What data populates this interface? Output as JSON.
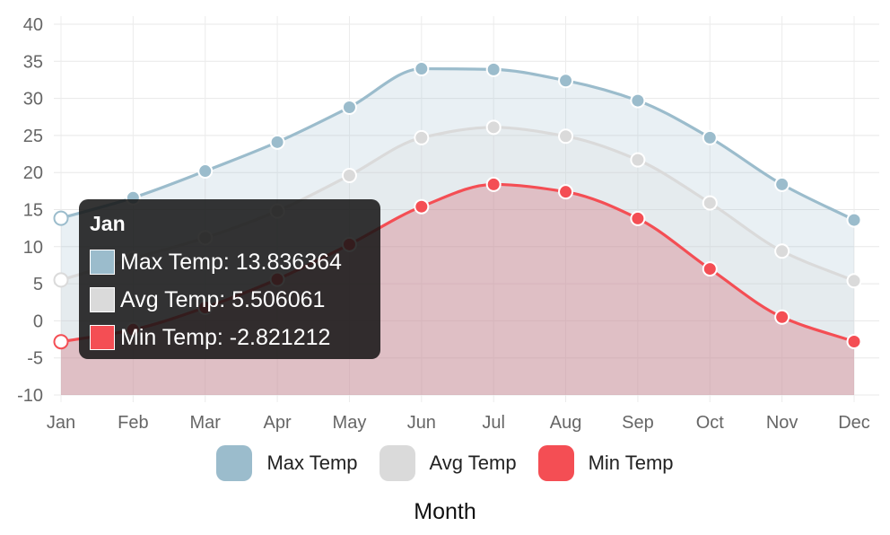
{
  "chart_data": {
    "type": "area",
    "categories": [
      "Jan",
      "Feb",
      "Mar",
      "Apr",
      "May",
      "Jun",
      "Jul",
      "Aug",
      "Sep",
      "Oct",
      "Nov",
      "Dec"
    ],
    "series": [
      {
        "name": "Max Temp",
        "color": "#9bbccc",
        "values": [
          13.836364,
          16.6,
          20.2,
          24.1,
          28.8,
          34.0,
          33.9,
          32.4,
          29.7,
          24.7,
          18.4,
          13.6
        ]
      },
      {
        "name": "Avg Temp",
        "color": "#dadada",
        "values": [
          5.506061,
          8.4,
          11.2,
          14.8,
          19.6,
          24.7,
          26.1,
          24.9,
          21.7,
          15.9,
          9.4,
          5.4
        ]
      },
      {
        "name": "Min Temp",
        "color": "#f44e54",
        "values": [
          -2.821212,
          -1.2,
          1.8,
          5.6,
          10.3,
          15.4,
          18.4,
          17.4,
          13.8,
          7.0,
          0.5,
          -2.8
        ]
      }
    ],
    "ylim": [
      -10,
      40
    ],
    "yticks": [
      -10,
      -5,
      0,
      5,
      10,
      15,
      20,
      25,
      30,
      35,
      40
    ],
    "xlabel": "Month",
    "ylabel": "",
    "grid": true,
    "legend": "bottom"
  },
  "tooltip": {
    "title": "Jan",
    "rows": [
      {
        "text": "Max Temp: 13.836364",
        "color": "#9bbccc"
      },
      {
        "text": "Avg Temp: 5.506061",
        "color": "#dadada"
      },
      {
        "text": "Min Temp: -2.821212",
        "color": "#f44e54"
      }
    ]
  }
}
